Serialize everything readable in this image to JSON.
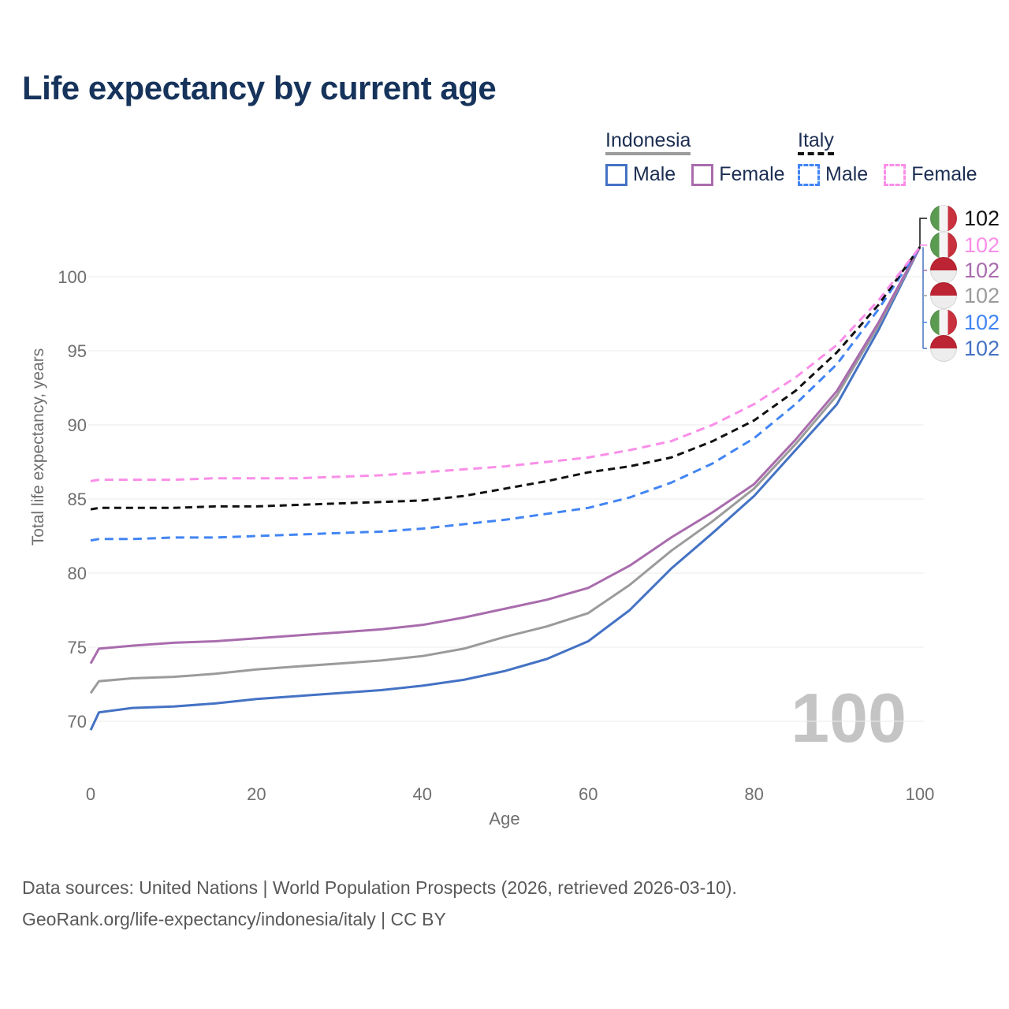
{
  "header": {
    "title": "Life expectancy by current age"
  },
  "legend": {
    "groups": [
      {
        "country": "Indonesia",
        "line_style": "solid",
        "line_color": "#9b9b9b",
        "items": [
          {
            "label": "Male",
            "color": "#4472c4",
            "line_style": "solid"
          },
          {
            "label": "Female",
            "color": "#a96cad",
            "line_style": "solid"
          }
        ]
      },
      {
        "country": "Italy",
        "line_style": "dashed",
        "line_color": "#111111",
        "items": [
          {
            "label": "Male",
            "color": "#4285f4",
            "line_style": "dashed"
          },
          {
            "label": "Female",
            "color": "#fa8ee8",
            "line_style": "dashed"
          }
        ]
      }
    ]
  },
  "chart_data": {
    "type": "line",
    "title": "Life expectancy by current age",
    "xlabel": "Age",
    "ylabel": "Total life expectancy, years",
    "xlim": [
      0,
      100
    ],
    "ylim": [
      68.5,
      103
    ],
    "xticks": [
      0,
      20,
      40,
      60,
      80,
      100
    ],
    "yticks": [
      70,
      75,
      80,
      85,
      90,
      95,
      100
    ],
    "grid": "horizontal",
    "legend_position": "top-right",
    "age_ticker": "100",
    "x": [
      0,
      1,
      5,
      10,
      15,
      20,
      25,
      30,
      35,
      40,
      45,
      50,
      55,
      60,
      65,
      70,
      75,
      80,
      85,
      90,
      95,
      100
    ],
    "series": [
      {
        "name": "Indonesia Male",
        "country": "Indonesia",
        "sex": "Male",
        "color": "#4472c4",
        "dash": false,
        "values": [
          69.4,
          70.6,
          70.9,
          71.0,
          71.2,
          71.5,
          71.7,
          71.9,
          72.1,
          72.4,
          72.8,
          73.4,
          74.2,
          75.4,
          77.5,
          80.3,
          82.7,
          85.2,
          88.3,
          91.4,
          96.4,
          102
        ]
      },
      {
        "name": "Indonesia",
        "country": "Indonesia",
        "sex": "Both",
        "color": "#9b9b9b",
        "dash": false,
        "values": [
          71.9,
          72.7,
          72.9,
          73.0,
          73.2,
          73.5,
          73.7,
          73.9,
          74.1,
          74.4,
          74.9,
          75.7,
          76.4,
          77.3,
          79.2,
          81.5,
          83.5,
          85.7,
          88.7,
          92.0,
          96.7,
          102
        ]
      },
      {
        "name": "Indonesia Female",
        "country": "Indonesia",
        "sex": "Female",
        "color": "#a96cad",
        "dash": false,
        "values": [
          73.9,
          74.9,
          75.1,
          75.3,
          75.4,
          75.6,
          75.8,
          76.0,
          76.2,
          76.5,
          77.0,
          77.6,
          78.2,
          79.0,
          80.5,
          82.4,
          84.1,
          86.0,
          89.0,
          92.3,
          96.9,
          102
        ]
      },
      {
        "name": "Italy Male",
        "country": "Italy",
        "sex": "Male",
        "color": "#4285f4",
        "dash": true,
        "values": [
          82.2,
          82.3,
          82.3,
          82.4,
          82.4,
          82.5,
          82.6,
          82.7,
          82.8,
          83.0,
          83.3,
          83.6,
          84.0,
          84.4,
          85.1,
          86.1,
          87.4,
          89.1,
          91.4,
          94.1,
          97.8,
          102
        ]
      },
      {
        "name": "Italy",
        "country": "Italy",
        "sex": "Both",
        "color": "#111111",
        "dash": true,
        "values": [
          84.3,
          84.4,
          84.4,
          84.4,
          84.5,
          84.5,
          84.6,
          84.7,
          84.8,
          84.9,
          85.2,
          85.7,
          86.2,
          86.8,
          87.2,
          87.8,
          88.9,
          90.3,
          92.3,
          94.9,
          98.1,
          102
        ]
      },
      {
        "name": "Italy Female",
        "country": "Italy",
        "sex": "Female",
        "color": "#fa8ee8",
        "dash": true,
        "values": [
          86.2,
          86.3,
          86.3,
          86.3,
          86.4,
          86.4,
          86.4,
          86.5,
          86.6,
          86.8,
          87.0,
          87.2,
          87.5,
          87.8,
          88.3,
          88.9,
          90.0,
          91.4,
          93.2,
          95.4,
          98.4,
          102
        ]
      }
    ],
    "end_value_labels": [
      {
        "series": "Italy",
        "flag": "italy",
        "value": "102",
        "color": "#111111"
      },
      {
        "series": "Italy Female",
        "flag": "italy",
        "value": "102",
        "color": "#fa8ee8"
      },
      {
        "series": "Indonesia Female",
        "flag": "indonesia",
        "value": "102",
        "color": "#a96cad"
      },
      {
        "series": "Indonesia",
        "flag": "indonesia",
        "value": "102",
        "color": "#9b9b9b"
      },
      {
        "series": "Italy Male",
        "flag": "italy",
        "value": "102",
        "color": "#4285f4"
      },
      {
        "series": "Indonesia Male",
        "flag": "indonesia",
        "value": "102",
        "color": "#4472c4"
      }
    ]
  },
  "footer": {
    "line1": "Data sources: United Nations | World Population Prospects (2026, retrieved 2026-03-10).",
    "line2": "GeoRank.org/life-expectancy/indonesia/italy | CC BY"
  }
}
